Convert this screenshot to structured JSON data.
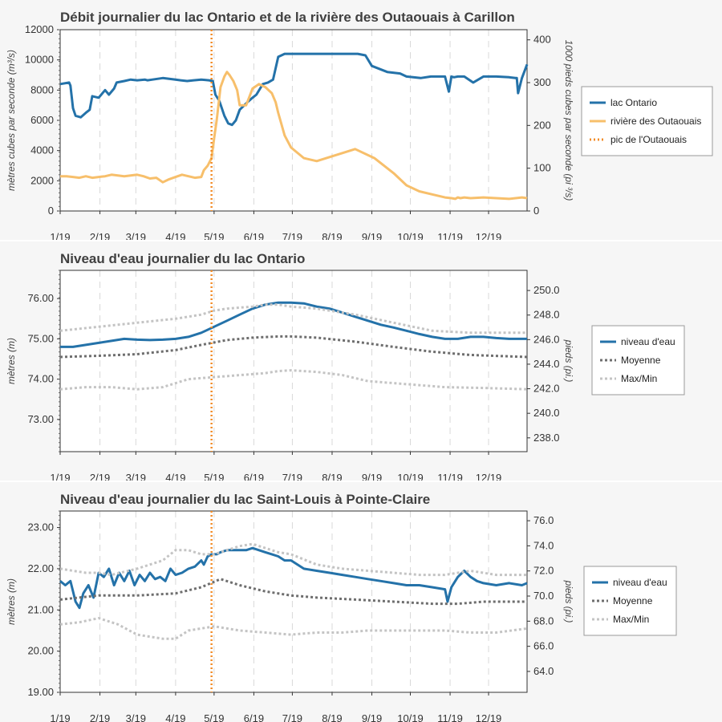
{
  "colors": {
    "ontario": "#2472a9",
    "outaouais": "#f7bf6b",
    "peak": "#f28c28",
    "moyenne": "#6e6e6e",
    "maxmin": "#c4c4c4",
    "grid": "#d9d9d9",
    "background": "#f6f6f6",
    "plot_bg": "#ffffff"
  },
  "months": [
    "1/19",
    "2/19",
    "3/19",
    "4/19",
    "5/19",
    "6/19",
    "7/19",
    "8/19",
    "9/19",
    "10/19",
    "11/19",
    "12/19"
  ],
  "chart_data": [
    {
      "type": "line",
      "title": "Débit journalier du lac Ontario et de la rivière des Outaouais à Carillon",
      "ylabel": "mètres cubes par seconde (m³/s)",
      "y2label": "1000 pieds cubes par seconde (pi ³/s)",
      "ylim": [
        0,
        12000
      ],
      "yticks": [
        "0",
        "2000",
        "4000",
        "6000",
        "8000",
        "10000",
        "12000"
      ],
      "y2ticks": [
        "0",
        "100",
        "200",
        "300",
        "400"
      ],
      "y2_factor": 0.0353147,
      "peak_day": 118,
      "legend": {
        "labels": [
          "lac Ontario",
          "rivière des Outaouais",
          "pic de l'Outaouais"
        ]
      },
      "series": [
        {
          "name": "lac Ontario",
          "style": "solid",
          "color_key": "ontario",
          "x": [
            0,
            7,
            8,
            10,
            12,
            16,
            20,
            23,
            25,
            30,
            35,
            38,
            42,
            44,
            50,
            55,
            60,
            66,
            68,
            72,
            80,
            90,
            94,
            99,
            104,
            110,
            116,
            119,
            121,
            124,
            128,
            131,
            134,
            137,
            140,
            146,
            150,
            153,
            158,
            162,
            166,
            170,
            175,
            185,
            200,
            220,
            225,
            232,
            238,
            243,
            255,
            265,
            270,
            281,
            289,
            300,
            303,
            305,
            307,
            310,
            315,
            322,
            330,
            340,
            350,
            355,
            356,
            357,
            360,
            364
          ],
          "y": [
            8400,
            8500,
            8300,
            6800,
            6300,
            6200,
            6500,
            6700,
            7600,
            7500,
            8000,
            7700,
            8100,
            8500,
            8600,
            8700,
            8650,
            8700,
            8650,
            8700,
            8800,
            8700,
            8650,
            8600,
            8650,
            8700,
            8650,
            8600,
            7700,
            7300,
            6300,
            5800,
            5700,
            6000,
            6700,
            7200,
            7500,
            7700,
            8400,
            8500,
            8700,
            10200,
            10400,
            10400,
            10400,
            10400,
            10400,
            10400,
            10300,
            9600,
            9200,
            9100,
            8900,
            8800,
            8900,
            8900,
            7900,
            8900,
            8850,
            8900,
            8900,
            8500,
            8900,
            8900,
            8850,
            8800,
            8800,
            7800,
            8800,
            9700
          ]
        },
        {
          "name": "rivière des Outaouais",
          "style": "solid",
          "color_key": "outaouais",
          "x": [
            0,
            5,
            10,
            15,
            20,
            25,
            30,
            35,
            40,
            45,
            50,
            55,
            60,
            65,
            70,
            75,
            80,
            85,
            90,
            95,
            100,
            105,
            110,
            112,
            115,
            118,
            120,
            122,
            125,
            128,
            130,
            132,
            135,
            138,
            140,
            145,
            150,
            155,
            160,
            165,
            168,
            170,
            172,
            175,
            180,
            190,
            200,
            215,
            230,
            245,
            260,
            270,
            280,
            290,
            300,
            305,
            308,
            310,
            312,
            315,
            320,
            330,
            340,
            350,
            360,
            364
          ],
          "y": [
            2300,
            2300,
            2250,
            2200,
            2300,
            2200,
            2250,
            2300,
            2400,
            2350,
            2300,
            2350,
            2400,
            2300,
            2150,
            2200,
            1900,
            2100,
            2250,
            2400,
            2300,
            2200,
            2250,
            2700,
            3000,
            3500,
            4800,
            6000,
            8200,
            8900,
            9200,
            9000,
            8600,
            8000,
            7000,
            7000,
            8100,
            8400,
            8200,
            7800,
            7200,
            6500,
            5900,
            5000,
            4200,
            3500,
            3300,
            3700,
            4100,
            3500,
            2500,
            1700,
            1300,
            1100,
            900,
            850,
            800,
            900,
            850,
            900,
            850,
            900,
            850,
            800,
            900,
            850
          ]
        }
      ]
    },
    {
      "type": "line",
      "title": "Niveau d'eau journalier du lac Ontario",
      "ylabel": "mètres (m)",
      "y2label": "pieds (pi.)",
      "ylim": [
        72.2,
        76.7
      ],
      "yticks": [
        "73.00",
        "74.00",
        "75.00",
        "76.00"
      ],
      "y2ticks": [
        "238.0",
        "240.0",
        "242.0",
        "244.0",
        "246.0",
        "248.0",
        "250.0"
      ],
      "peak_day": 118,
      "legend": {
        "labels": [
          "niveau d'eau",
          "Moyenne",
          "Max/Min"
        ]
      },
      "series": [
        {
          "name": "niveau d'eau",
          "style": "solid",
          "color_key": "ontario",
          "x": [
            0,
            10,
            20,
            30,
            40,
            50,
            60,
            70,
            80,
            90,
            100,
            110,
            120,
            130,
            140,
            150,
            160,
            170,
            180,
            190,
            200,
            210,
            220,
            230,
            240,
            250,
            260,
            270,
            280,
            290,
            300,
            310,
            320,
            330,
            340,
            350,
            364
          ],
          "y": [
            74.8,
            74.8,
            74.85,
            74.9,
            74.95,
            75.0,
            74.98,
            74.97,
            74.98,
            75.0,
            75.05,
            75.15,
            75.3,
            75.45,
            75.6,
            75.75,
            75.85,
            75.9,
            75.9,
            75.88,
            75.8,
            75.75,
            75.65,
            75.55,
            75.45,
            75.35,
            75.28,
            75.2,
            75.12,
            75.05,
            75.0,
            75.0,
            75.05,
            75.05,
            75.02,
            75.0,
            75.0
          ]
        },
        {
          "name": "Moyenne",
          "style": "dotted",
          "color_key": "moyenne",
          "x": [
            0,
            30,
            60,
            90,
            110,
            130,
            150,
            170,
            180,
            200,
            230,
            260,
            290,
            320,
            364
          ],
          "y": [
            74.55,
            74.58,
            74.62,
            74.72,
            74.85,
            74.97,
            75.03,
            75.06,
            75.06,
            75.03,
            74.93,
            74.8,
            74.68,
            74.6,
            74.55
          ]
        },
        {
          "name": "Max",
          "style": "dotted",
          "color_key": "maxmin",
          "x": [
            0,
            30,
            60,
            90,
            110,
            120,
            130,
            150,
            160,
            170,
            180,
            200,
            230,
            260,
            290,
            320,
            364
          ],
          "y": [
            75.2,
            75.3,
            75.4,
            75.5,
            75.6,
            75.7,
            75.75,
            75.8,
            75.85,
            75.85,
            75.8,
            75.75,
            75.6,
            75.4,
            75.2,
            75.15,
            75.15
          ]
        },
        {
          "name": "Min",
          "style": "dotted",
          "color_key": "maxmin",
          "x": [
            0,
            20,
            40,
            60,
            80,
            100,
            120,
            140,
            160,
            170,
            180,
            200,
            220,
            240,
            260,
            280,
            300,
            330,
            364
          ],
          "y": [
            73.75,
            73.8,
            73.8,
            73.75,
            73.8,
            74.0,
            74.05,
            74.1,
            74.15,
            74.2,
            74.22,
            74.18,
            74.1,
            73.95,
            73.9,
            73.85,
            73.8,
            73.78,
            73.75
          ]
        }
      ]
    },
    {
      "type": "line",
      "title": "Niveau d'eau journalier du lac Saint-Louis à Pointe-Claire",
      "ylabel": "mètres (m)",
      "y2label": "pieds (pi.)",
      "ylim": [
        19.0,
        23.4
      ],
      "yticks": [
        "19.00",
        "20.00",
        "21.00",
        "22.00",
        "23.00"
      ],
      "y2ticks": [
        "64.0",
        "66.0",
        "68.0",
        "70.0",
        "72.0",
        "74.0",
        "76.0"
      ],
      "peak_day": 118,
      "legend": {
        "labels": [
          "niveau d'eau",
          "Moyenne",
          "Max/Min"
        ]
      },
      "series": [
        {
          "name": "niveau d'eau",
          "style": "solid",
          "color_key": "ontario",
          "x": [
            0,
            4,
            8,
            12,
            15,
            18,
            22,
            26,
            30,
            34,
            38,
            42,
            46,
            50,
            54,
            58,
            62,
            66,
            70,
            74,
            78,
            82,
            86,
            90,
            95,
            100,
            105,
            110,
            112,
            115,
            118,
            122,
            125,
            130,
            135,
            140,
            145,
            150,
            155,
            160,
            165,
            170,
            175,
            180,
            185,
            190,
            200,
            210,
            220,
            230,
            240,
            250,
            260,
            270,
            280,
            290,
            300,
            302,
            305,
            308,
            310,
            315,
            320,
            325,
            330,
            340,
            350,
            360,
            364
          ],
          "y": [
            21.7,
            21.6,
            21.7,
            21.2,
            21.05,
            21.4,
            21.6,
            21.3,
            21.9,
            21.8,
            22.0,
            21.6,
            21.9,
            21.7,
            21.95,
            21.6,
            21.85,
            21.7,
            21.9,
            21.75,
            21.8,
            21.7,
            22.0,
            21.85,
            21.9,
            22.0,
            22.05,
            22.2,
            22.1,
            22.3,
            22.35,
            22.35,
            22.4,
            22.45,
            22.45,
            22.45,
            22.45,
            22.5,
            22.45,
            22.4,
            22.35,
            22.3,
            22.2,
            22.2,
            22.1,
            22.0,
            21.95,
            21.9,
            21.85,
            21.8,
            21.75,
            21.7,
            21.65,
            21.6,
            21.6,
            21.55,
            21.5,
            21.2,
            21.55,
            21.7,
            21.8,
            21.95,
            21.8,
            21.7,
            21.65,
            21.6,
            21.65,
            21.6,
            21.65
          ]
        },
        {
          "name": "Moyenne",
          "style": "dotted",
          "color_key": "moyenne",
          "x": [
            0,
            30,
            60,
            90,
            110,
            125,
            140,
            160,
            180,
            200,
            230,
            260,
            290,
            310,
            330,
            364
          ],
          "y": [
            21.25,
            21.35,
            21.35,
            21.4,
            21.55,
            21.75,
            21.6,
            21.45,
            21.35,
            21.3,
            21.25,
            21.2,
            21.15,
            21.15,
            21.2,
            21.2
          ]
        },
        {
          "name": "Max",
          "style": "dotted",
          "color_key": "maxmin",
          "x": [
            0,
            10,
            20,
            30,
            40,
            60,
            80,
            90,
            100,
            110,
            120,
            140,
            150,
            160,
            170,
            180,
            200,
            220,
            240,
            260,
            280,
            300,
            320,
            340,
            364
          ],
          "y": [
            22.0,
            21.95,
            21.9,
            21.9,
            21.85,
            22.0,
            22.2,
            22.45,
            22.45,
            22.35,
            22.35,
            22.55,
            22.6,
            22.5,
            22.4,
            22.35,
            22.1,
            22.0,
            21.95,
            21.9,
            21.85,
            21.85,
            21.95,
            21.85,
            21.85
          ]
        },
        {
          "name": "Min",
          "style": "dotted",
          "color_key": "maxmin",
          "x": [
            0,
            15,
            30,
            45,
            60,
            80,
            90,
            100,
            110,
            120,
            130,
            140,
            160,
            180,
            200,
            220,
            240,
            260,
            280,
            300,
            320,
            340,
            364
          ],
          "y": [
            20.65,
            20.7,
            20.8,
            20.65,
            20.4,
            20.3,
            20.3,
            20.5,
            20.55,
            20.6,
            20.55,
            20.5,
            20.45,
            20.4,
            20.45,
            20.45,
            20.5,
            20.5,
            20.5,
            20.5,
            20.45,
            20.45,
            20.55
          ]
        }
      ]
    }
  ]
}
